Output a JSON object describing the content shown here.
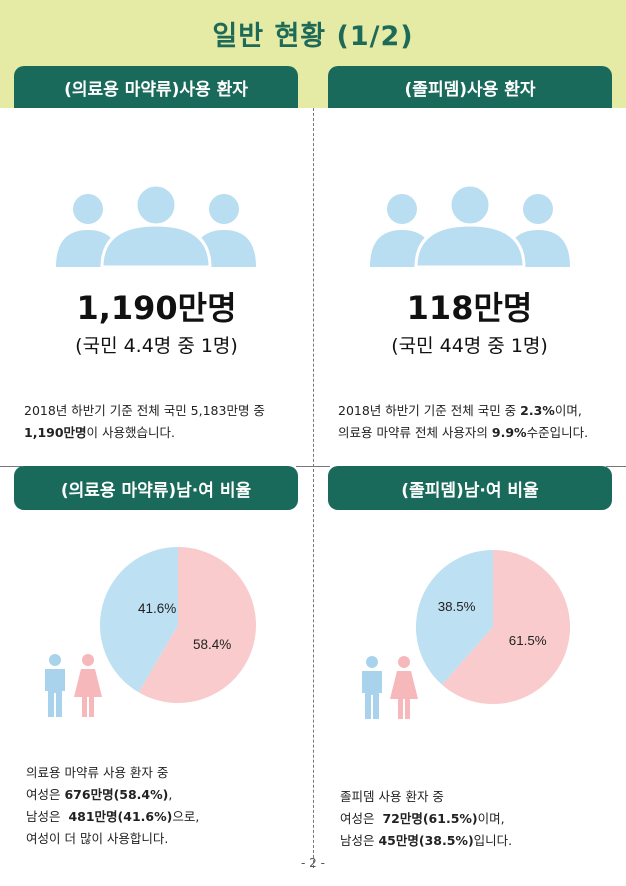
{
  "title": "일반 현황 (1/2)",
  "left": {
    "tab_top": "(의료용 마약류)사용 환자",
    "icon": "people-group-icon",
    "big_number": "1,190만명",
    "ratio": "(국민  4.4명 중 1명)",
    "desc_line1": "2018년 하반기 기준 전체 국민 5,183만명 중",
    "desc_line2_bold": "1,190만명",
    "desc_line2_rest": "이 사용했습니다.",
    "tab_bottom": "(의료용 마약류)남·여 비율",
    "chart_label_male": "41.6%",
    "chart_label_female": "58.4%",
    "note_line1": "의료용 마약류 사용 환자 중",
    "note_line2_pre": "여성은 ",
    "note_line2_bold": "676만명(58.4%)",
    "note_line2_post": ",",
    "note_line3_pre": "남성은  ",
    "note_line3_bold": "481만명(41.6%)",
    "note_line3_post": "으로,",
    "note_line4": "여성이 더 많이 사용합니다."
  },
  "right": {
    "tab_top": "(졸피뎀)사용 환자",
    "icon": "people-group-icon",
    "big_number": "118만명",
    "ratio": "(국민  44명 중 1명)",
    "desc_line1_pre": "2018년 하반기 기준 전체 국민 중 ",
    "desc_line1_bold": "2.3%",
    "desc_line1_post": "이며,",
    "desc_line2_pre": "의료용 마약류 전체 사용자의 ",
    "desc_line2_bold": "9.9%",
    "desc_line2_post": "수준입니다.",
    "tab_bottom": "(졸피뎀)남·여 비율",
    "chart_label_male": "38.5%",
    "chart_label_female": "61.5%",
    "note_line1": "졸피뎀 사용 환자 중",
    "note_line2_pre": "여성은  ",
    "note_line2_bold": "72만명(61.5%)",
    "note_line2_post": "이며,",
    "note_line3_pre": "남성은 ",
    "note_line3_bold": "45만명(38.5%)",
    "note_line3_post": "입니다."
  },
  "colors": {
    "male": "#bde0f3",
    "female": "#f9cbcc",
    "tab": "#1a6a5c",
    "title_bg": "#e5eaa4",
    "title_text": "#1d6a58",
    "people": "#b9ddf1"
  },
  "chart_data": [
    {
      "type": "pie",
      "categories": [
        "여성",
        "남성"
      ],
      "values": [
        58.4,
        41.6
      ]
    },
    {
      "type": "pie",
      "categories": [
        "여성",
        "남성"
      ],
      "values": [
        61.5,
        38.5
      ]
    }
  ],
  "page_number": "- 2 -"
}
